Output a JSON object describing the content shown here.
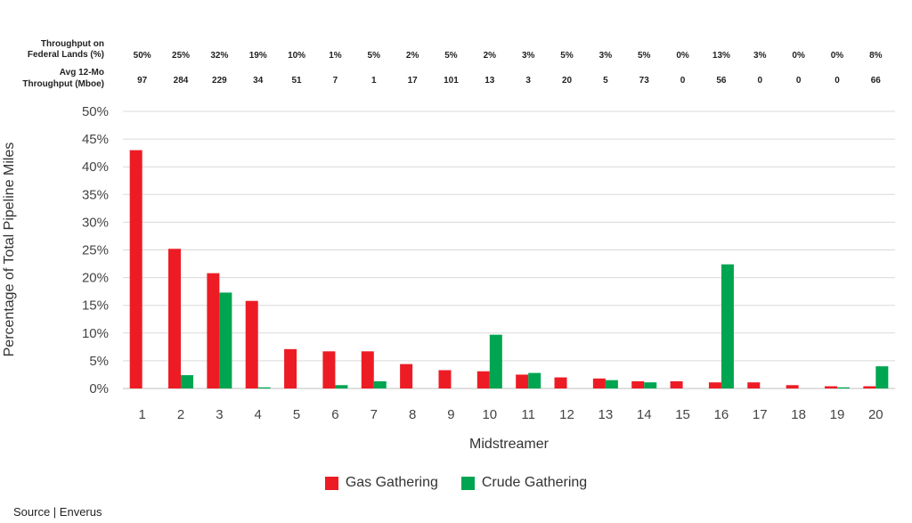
{
  "chart_data": {
    "type": "bar",
    "xlabel": "Midstreamer",
    "ylabel": "Percentage of Total Pipeline Miles",
    "ylim": [
      0,
      50
    ],
    "yticks": [
      "0%",
      "5%",
      "10%",
      "15%",
      "20%",
      "25%",
      "30%",
      "35%",
      "40%",
      "45%",
      "50%"
    ],
    "grid": true,
    "legend_position": "bottom-center",
    "categories": [
      "1",
      "2",
      "3",
      "4",
      "5",
      "6",
      "7",
      "8",
      "9",
      "10",
      "11",
      "12",
      "13",
      "14",
      "15",
      "16",
      "17",
      "18",
      "19",
      "20"
    ],
    "series": [
      {
        "name": "Gas Gathering",
        "color": "#ED1C24",
        "values": [
          43,
          25.2,
          20.8,
          15.8,
          7.1,
          6.7,
          6.7,
          4.4,
          3.3,
          3.1,
          2.5,
          2.0,
          1.8,
          1.3,
          1.3,
          1.1,
          1.1,
          0.6,
          0.4,
          0.4
        ]
      },
      {
        "name": "Crude Gathering",
        "color": "#00A551",
        "values": [
          0,
          2.4,
          17.3,
          0.2,
          0,
          0.6,
          1.3,
          0,
          0,
          9.7,
          2.8,
          0,
          1.5,
          1.1,
          0,
          22.4,
          0,
          0,
          0.2,
          4.0
        ]
      }
    ],
    "header_rows": [
      {
        "label_lines": [
          "Throughput on",
          "Federal Lands (%)"
        ],
        "values": [
          "50%",
          "25%",
          "32%",
          "19%",
          "10%",
          "1%",
          "5%",
          "2%",
          "5%",
          "2%",
          "3%",
          "5%",
          "3%",
          "5%",
          "0%",
          "13%",
          "3%",
          "0%",
          "0%",
          "8%"
        ]
      },
      {
        "label_lines": [
          "Avg 12-Mo",
          "Throughput (Mboe)"
        ],
        "values": [
          "97",
          "284",
          "229",
          "34",
          "51",
          "7",
          "1",
          "17",
          "101",
          "13",
          "3",
          "20",
          "5",
          "73",
          "0",
          "56",
          "0",
          "0",
          "0",
          "66"
        ]
      }
    ]
  },
  "legend": [
    {
      "label": "Gas Gathering",
      "color": "#ED1C24"
    },
    {
      "label": "Crude Gathering",
      "color": "#00A551"
    }
  ],
  "source": "Source | Enverus"
}
